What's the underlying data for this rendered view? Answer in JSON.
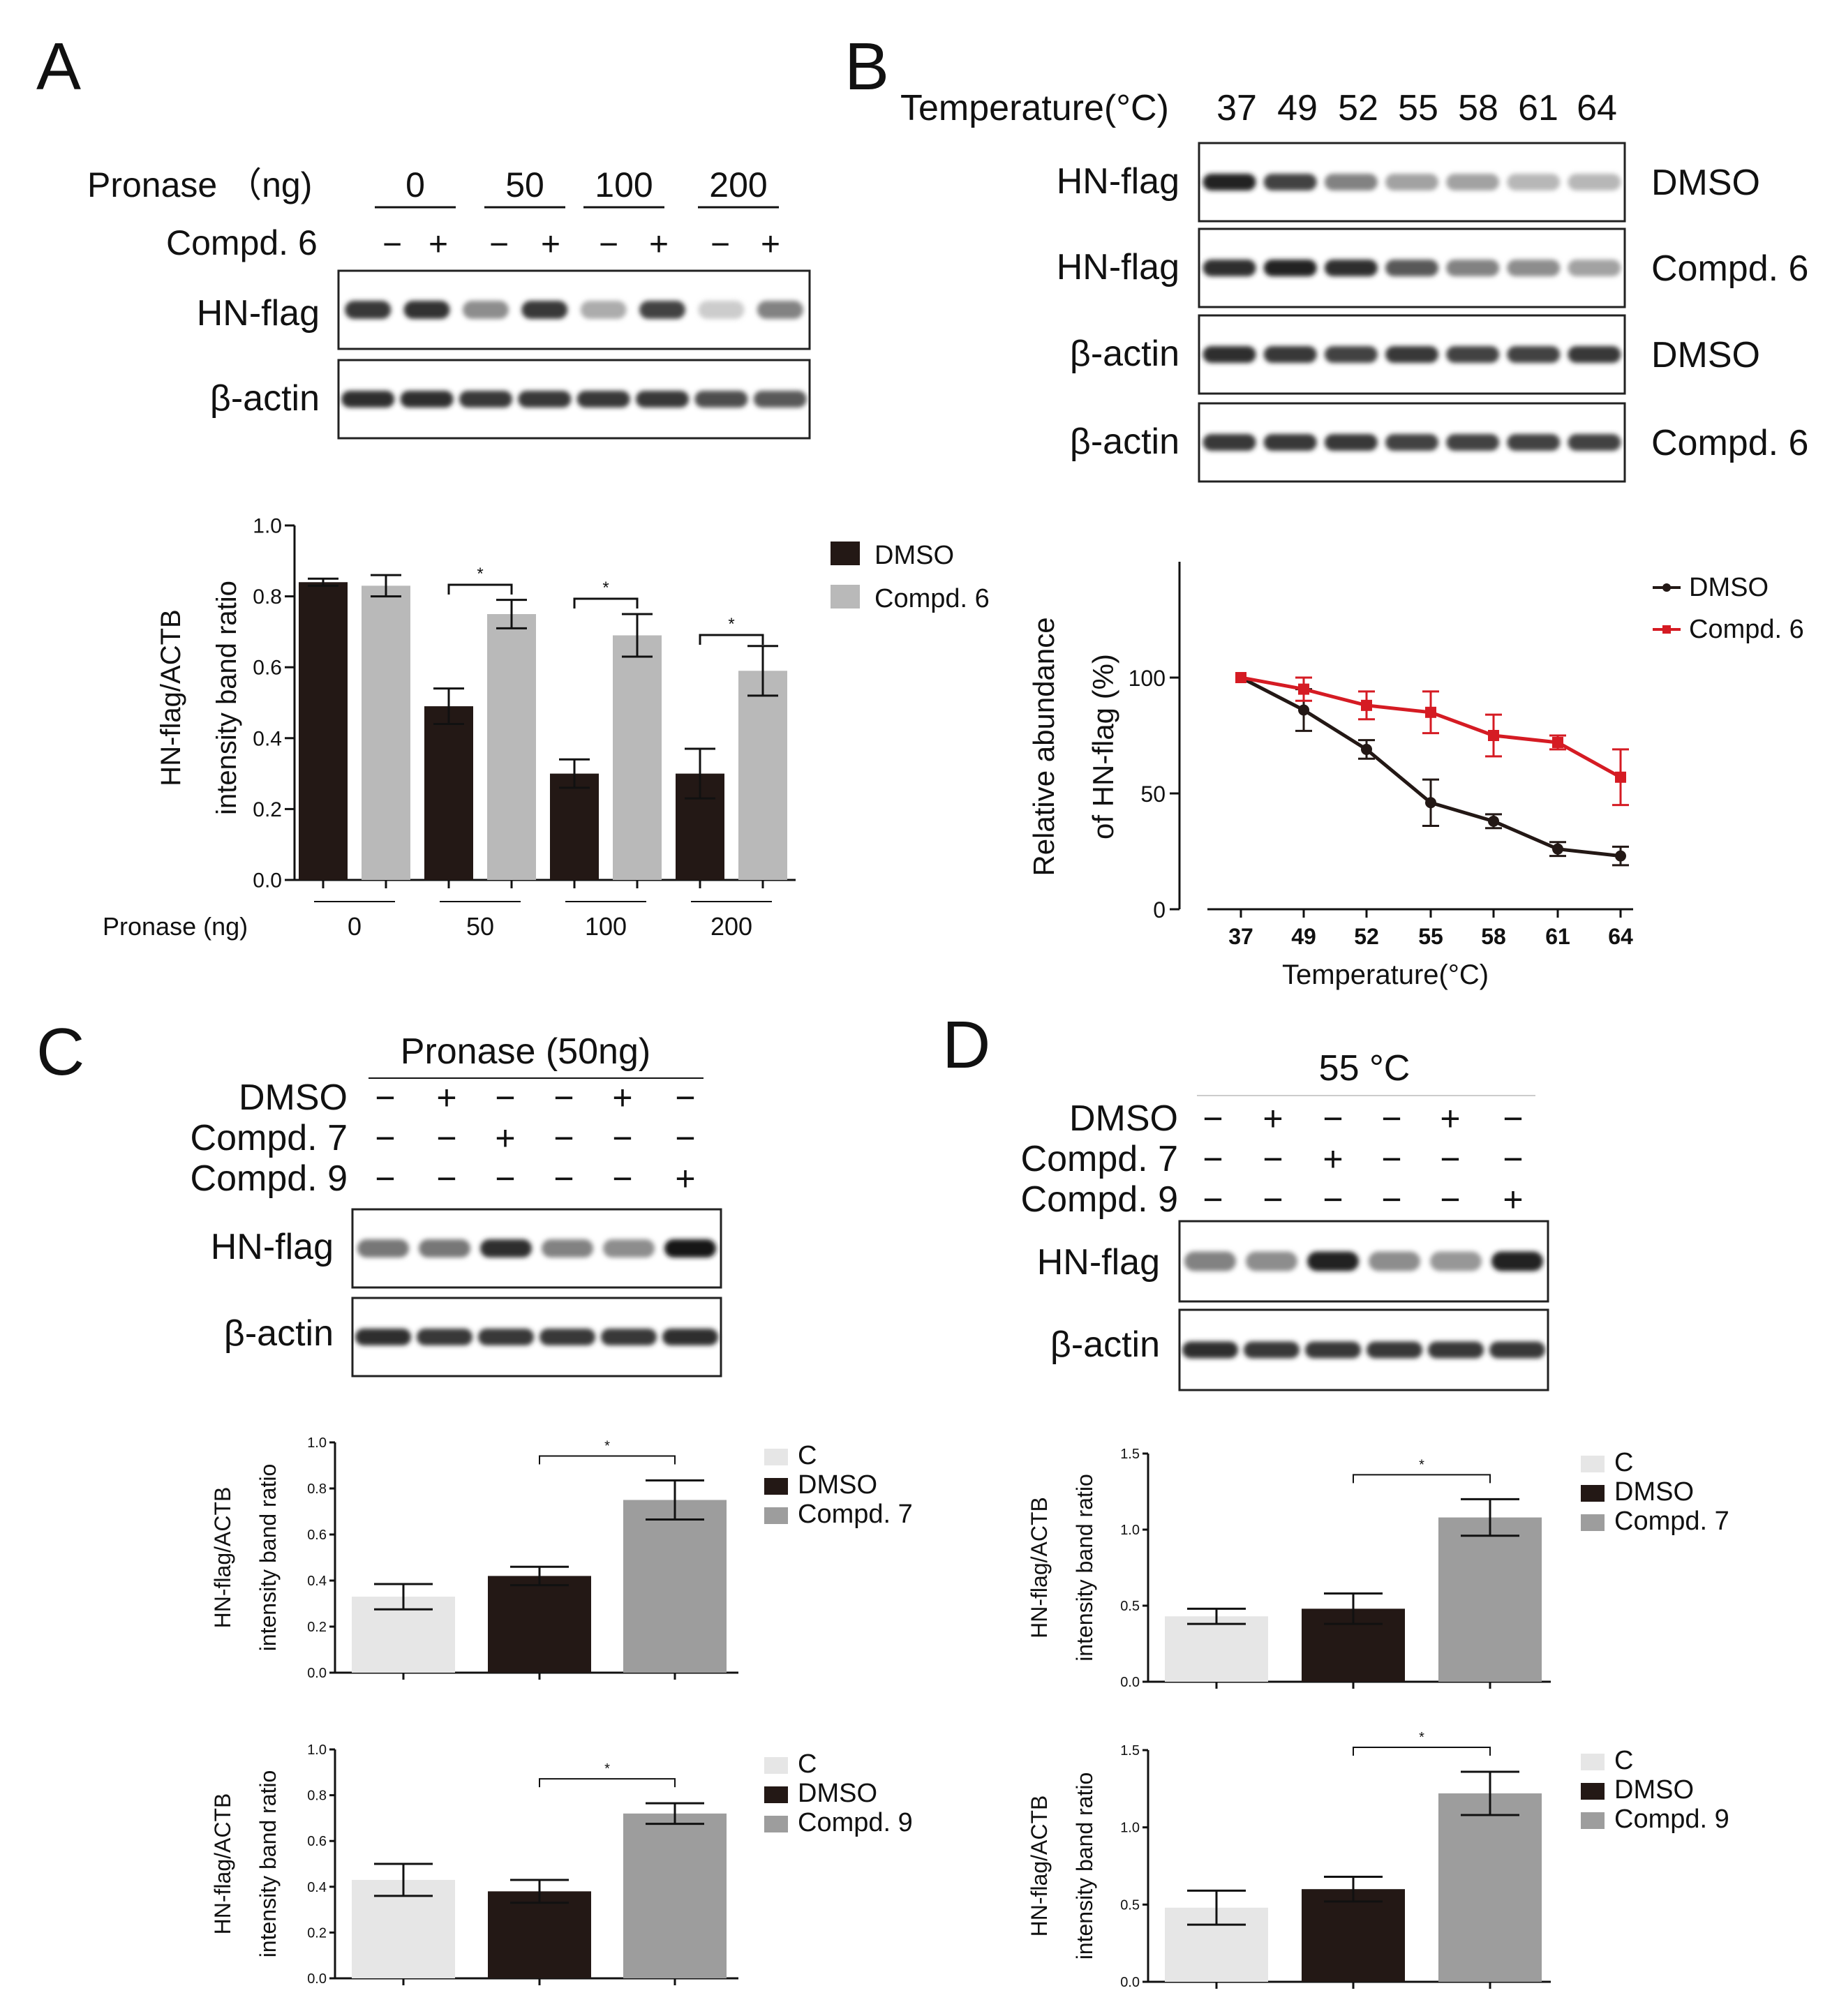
{
  "colors": {
    "dmso": "#231815",
    "compd": "#b9b9b9",
    "c_light": "#e6e6e6",
    "compd_grey": "#9d9d9d",
    "red": "#d51b23"
  },
  "panels": {
    "A": {
      "letter": "A",
      "pronase_label": "Pronase （ng)",
      "pronase_groups": [
        "0",
        "50",
        "100",
        "200"
      ],
      "compd_label": "Compd. 6",
      "signs": [
        "−",
        "+",
        "−",
        "+",
        "−",
        "+",
        "−",
        "+"
      ],
      "blot_rows": [
        {
          "label": "HN-flag",
          "intensity": [
            0.85,
            0.88,
            0.45,
            0.85,
            0.3,
            0.8,
            0.15,
            0.5
          ]
        },
        {
          "label": "β-actin",
          "intensity": [
            0.9,
            0.9,
            0.85,
            0.85,
            0.85,
            0.85,
            0.75,
            0.7
          ]
        }
      ]
    },
    "B": {
      "letter": "B",
      "temp_label": "Temperature(°C)",
      "temps": [
        "37",
        "49",
        "52",
        "55",
        "58",
        "61",
        "64"
      ],
      "blot_rows": [
        {
          "label": "HN-flag",
          "condition": "DMSO",
          "intensity": [
            0.95,
            0.8,
            0.5,
            0.35,
            0.35,
            0.25,
            0.25
          ]
        },
        {
          "label": "HN-flag",
          "condition": "Compd. 6",
          "intensity": [
            0.9,
            0.95,
            0.9,
            0.7,
            0.5,
            0.45,
            0.35
          ]
        },
        {
          "label": "β-actin",
          "condition": "DMSO",
          "intensity": [
            0.9,
            0.85,
            0.8,
            0.85,
            0.8,
            0.8,
            0.85
          ]
        },
        {
          "label": "β-actin",
          "condition": "Compd. 6",
          "intensity": [
            0.85,
            0.85,
            0.85,
            0.8,
            0.8,
            0.8,
            0.8
          ]
        }
      ]
    },
    "C": {
      "letter": "C",
      "header": "Pronase (50ng)",
      "treatments": [
        {
          "label": "DMSO",
          "signs": [
            "−",
            "+",
            "−",
            "−",
            "+",
            "−"
          ]
        },
        {
          "label": "Compd. 7",
          "signs": [
            "−",
            "−",
            "+",
            "−",
            "−",
            "−"
          ]
        },
        {
          "label": "Compd. 9",
          "signs": [
            "−",
            "−",
            "−",
            "−",
            "−",
            "+"
          ]
        }
      ],
      "blot_rows": [
        {
          "label": "HN-flag",
          "intensity": [
            0.55,
            0.55,
            0.9,
            0.5,
            0.45,
            1.0
          ]
        },
        {
          "label": "β-actin",
          "intensity": [
            0.9,
            0.85,
            0.85,
            0.85,
            0.85,
            0.9
          ]
        }
      ]
    },
    "D": {
      "letter": "D",
      "header": "55 °C",
      "treatments": [
        {
          "label": "DMSO",
          "signs": [
            "−",
            "+",
            "−",
            "−",
            "+",
            "−"
          ]
        },
        {
          "label": "Compd. 7",
          "signs": [
            "−",
            "−",
            "+",
            "−",
            "−",
            "−"
          ]
        },
        {
          "label": "Compd. 9",
          "signs": [
            "−",
            "−",
            "−",
            "−",
            "−",
            "+"
          ]
        }
      ],
      "blot_rows": [
        {
          "label": "HN-flag",
          "intensity": [
            0.5,
            0.45,
            0.95,
            0.45,
            0.4,
            0.95
          ]
        },
        {
          "label": "β-actin",
          "intensity": [
            0.9,
            0.85,
            0.85,
            0.85,
            0.85,
            0.85
          ]
        }
      ]
    }
  },
  "chart_data": [
    {
      "id": "A_bar",
      "type": "bar",
      "categories": [
        "0",
        "50",
        "100",
        "200"
      ],
      "xlabel": "Pronase (ng)",
      "ylabel": [
        "HN-flag/ACTB",
        "intensity band ratio"
      ],
      "ylim": [
        0,
        1.0
      ],
      "yticks": [
        "0.0",
        "0.2",
        "0.4",
        "0.6",
        "0.8",
        "1.0"
      ],
      "series": [
        {
          "name": "DMSO",
          "values": [
            0.84,
            0.49,
            0.3,
            0.3
          ],
          "errors": [
            0.01,
            0.05,
            0.04,
            0.07
          ]
        },
        {
          "name": "Compd. 6",
          "values": [
            0.83,
            0.75,
            0.69,
            0.59
          ],
          "errors": [
            0.03,
            0.04,
            0.06,
            0.07
          ]
        }
      ],
      "significance": [
        "*",
        "*",
        "*"
      ]
    },
    {
      "id": "B_line",
      "type": "line",
      "x": [
        "37",
        "49",
        "52",
        "55",
        "58",
        "61",
        "64"
      ],
      "xlabel": "Temperature(°C)",
      "ylabel": [
        "Relative abundance",
        "of HN-flag (%)"
      ],
      "ylim": [
        0,
        150
      ],
      "yticks": [
        "0",
        "50",
        "100"
      ],
      "series": [
        {
          "name": "DMSO",
          "values": [
            100,
            86,
            69,
            46,
            38,
            26,
            23
          ],
          "errors": [
            0,
            9,
            4,
            10,
            3,
            3,
            4
          ]
        },
        {
          "name": "Compd. 6",
          "values": [
            100,
            95,
            88,
            85,
            75,
            72,
            57
          ],
          "errors": [
            0,
            5,
            6,
            9,
            9,
            3,
            12
          ]
        }
      ]
    },
    {
      "id": "C_top",
      "type": "bar",
      "categories": [
        "C",
        "DMSO",
        "Compd. 7"
      ],
      "ylabel": [
        "HN-flag/ACTB",
        "intensity band ratio"
      ],
      "ylim": [
        0,
        1.0
      ],
      "yticks": [
        "0.0",
        "0.2",
        "0.4",
        "0.6",
        "0.8",
        "1.0"
      ],
      "values": [
        0.33,
        0.42,
        0.75
      ],
      "errors": [
        0.055,
        0.04,
        0.085
      ],
      "significance": "*"
    },
    {
      "id": "C_bottom",
      "type": "bar",
      "categories": [
        "C",
        "DMSO",
        "Compd. 9"
      ],
      "ylabel": [
        "HN-flag/ACTB",
        "intensity band ratio"
      ],
      "ylim": [
        0,
        1.0
      ],
      "yticks": [
        "0.0",
        "0.2",
        "0.4",
        "0.6",
        "0.8",
        "1.0"
      ],
      "values": [
        0.43,
        0.38,
        0.72
      ],
      "errors": [
        0.07,
        0.05,
        0.045
      ],
      "significance": "*"
    },
    {
      "id": "D_top",
      "type": "bar",
      "categories": [
        "C",
        "DMSO",
        "Compd. 7"
      ],
      "ylabel": [
        "HN-flag/ACTB",
        "intensity band ratio"
      ],
      "ylim": [
        0,
        1.5
      ],
      "yticks": [
        "0.0",
        "0.5",
        "1.0",
        "1.5"
      ],
      "values": [
        0.43,
        0.48,
        1.08
      ],
      "errors": [
        0.05,
        0.1,
        0.12
      ],
      "significance": "*"
    },
    {
      "id": "D_bottom",
      "type": "bar",
      "categories": [
        "C",
        "DMSO",
        "Compd. 9"
      ],
      "ylabel": [
        "HN-flag/ACTB",
        "intensity band ratio"
      ],
      "ylim": [
        0,
        1.5
      ],
      "yticks": [
        "0.0",
        "0.5",
        "1.0",
        "1.5"
      ],
      "values": [
        0.48,
        0.6,
        1.22
      ],
      "errors": [
        0.11,
        0.08,
        0.14
      ],
      "significance": "*"
    }
  ]
}
